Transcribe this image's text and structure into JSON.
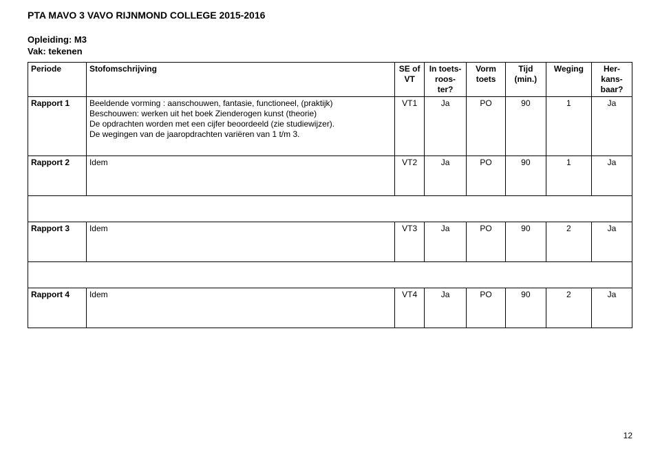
{
  "doc_title": "PTA MAVO 3 VAVO RIJNMOND COLLEGE 2015-2016",
  "meta": {
    "opleiding_label": "Opleiding:",
    "opleiding_value": "M3",
    "vak_label": "Vak:",
    "vak_value": "tekenen"
  },
  "columns": {
    "periode": "Periode",
    "stof": "Stofomschrijving",
    "se": "SE of VT",
    "in_toets": "In toets-roos-ter?",
    "vorm": "Vorm toets",
    "tijd": "Tijd (min.)",
    "weging": "Weging",
    "herkans": "Her-kans-baar?"
  },
  "rows": {
    "r1": {
      "periode": "Rapport 1",
      "stof_line1": "Beeldende vorming : aanschouwen, fantasie, functioneel, (praktijk)",
      "stof_line2": "Beschouwen: werken uit het boek Zienderogen kunst (theorie)",
      "stof_line3": "De opdrachten worden met een cijfer beoordeeld (zie studiewijzer).",
      "stof_line4": "De wegingen van de jaaropdrachten variëren van 1 t/m 3.",
      "se": "VT1",
      "in": "Ja",
      "vorm": "PO",
      "tijd": "90",
      "weging": "1",
      "herkans": "Ja"
    },
    "r2": {
      "periode": "Rapport 2",
      "stof": "Idem",
      "se": "VT2",
      "in": "Ja",
      "vorm": "PO",
      "tijd": "90",
      "weging": "1",
      "herkans": "Ja"
    },
    "r3": {
      "periode": "Rapport 3",
      "stof": "Idem",
      "se": "VT3",
      "in": "Ja",
      "vorm": "PO",
      "tijd": "90",
      "weging": "2",
      "herkans": "Ja"
    },
    "r4": {
      "periode": "Rapport 4",
      "stof": "Idem",
      "se": "VT4",
      "in": "Ja",
      "vorm": "PO",
      "tijd": "90",
      "weging": "2",
      "herkans": "Ja"
    }
  },
  "page_number": "12"
}
